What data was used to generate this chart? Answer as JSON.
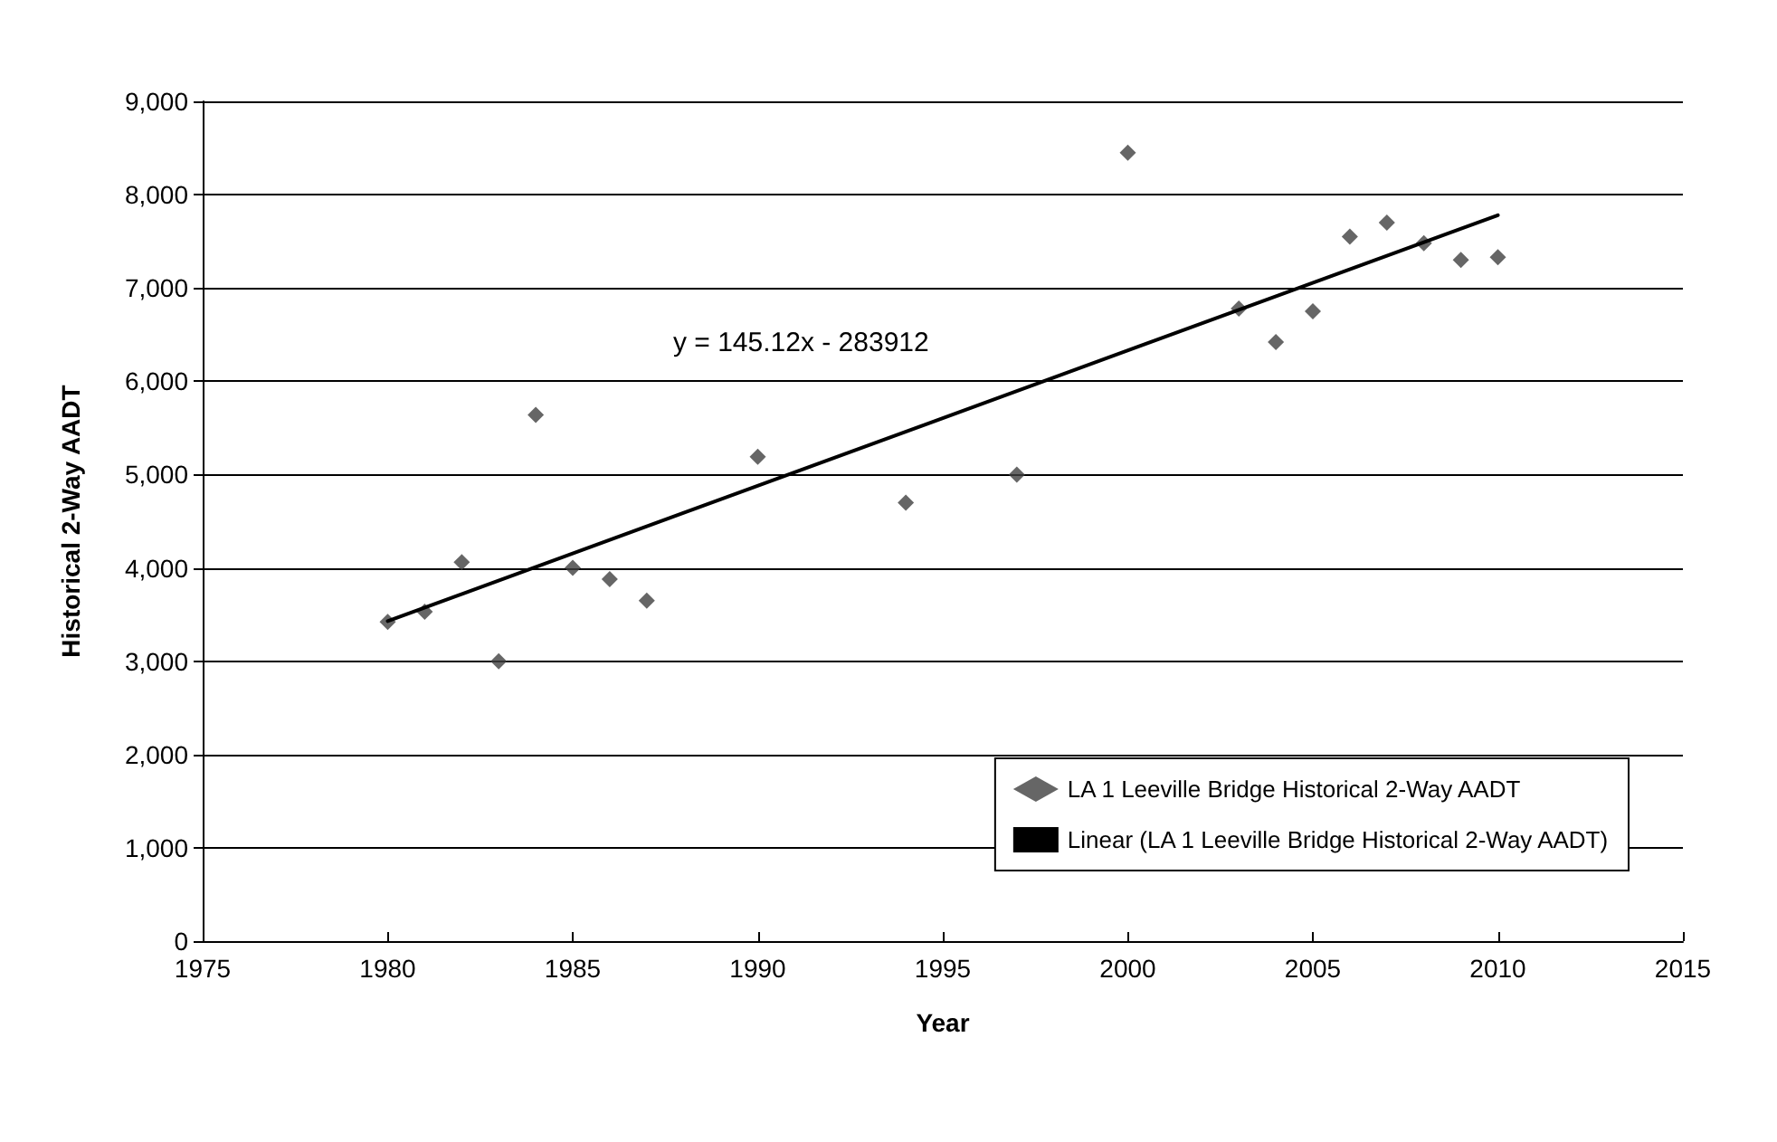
{
  "chart_data": {
    "type": "scatter",
    "xlabel": "Year",
    "ylabel": "Historical 2-Way AADT",
    "xlim": [
      1975,
      2015
    ],
    "xticks": [
      1975,
      1980,
      1985,
      1990,
      1995,
      2000,
      2005,
      2010,
      2015
    ],
    "ylim": [
      0,
      9000
    ],
    "yticks": [
      0,
      {
        "value": 1000,
        "label": "1,000"
      },
      {
        "value": 2000,
        "label": "2,000"
      },
      {
        "value": 3000,
        "label": "3,000"
      },
      {
        "value": 4000,
        "label": "4,000"
      },
      {
        "value": 5000,
        "label": "5,000"
      },
      {
        "value": 6000,
        "label": "6,000"
      },
      {
        "value": 7000,
        "label": "7,000"
      },
      {
        "value": 8000,
        "label": "8,000"
      },
      {
        "value": 9000,
        "label": "9,000"
      }
    ],
    "grid": "y",
    "legend": "bottom right",
    "marker": "diamond",
    "x": [
      1980,
      1981,
      1982,
      1983,
      1984,
      1985,
      1986,
      1987,
      1990,
      1994,
      1997,
      2000,
      2003,
      2004,
      2005,
      2006,
      2007,
      2008,
      2009,
      2010
    ],
    "series": [
      {
        "name": "LA 1 Leeville Bridge Historical 2-Way AADT",
        "color": "#404040",
        "values": [
          3420,
          3530,
          4060,
          3000,
          5640,
          4000,
          3880,
          3650,
          5190,
          4700,
          5000,
          8450,
          6780,
          6420,
          6750,
          7550,
          7700,
          7480,
          7300,
          7330
        ]
      },
      {
        "name": "Linear (LA 1 Leeville Bridge Historical 2-Way AADT)",
        "type": "line",
        "color": "#000000",
        "marker": "none",
        "line_style": "solid",
        "x": [
          1980,
          2010
        ],
        "values": [
          3430,
          7780
        ]
      }
    ],
    "annotations": [
      "y = 145.12x - 283912"
    ]
  }
}
